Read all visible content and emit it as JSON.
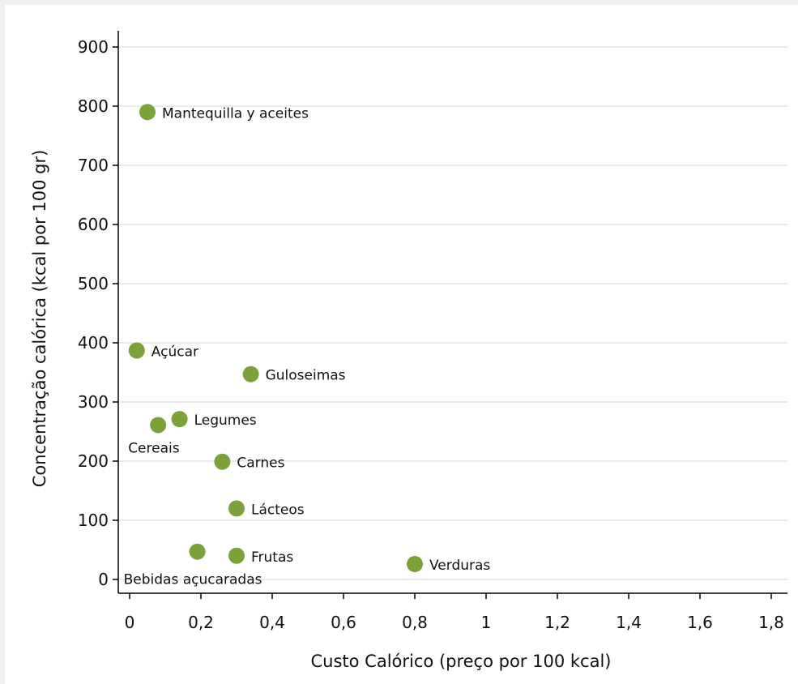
{
  "colors": {
    "background": "#eef0f1",
    "plot_background": "#ffffff",
    "grid": "#d9dde0",
    "point": "#7ba23a",
    "axis": "#000000"
  },
  "chart_data": {
    "type": "scatter",
    "title": "",
    "xlabel": "Custo Calórico (preço por 100 kcal)",
    "ylabel": "Concentração calórica (kcal por 100 gr)",
    "xlim": [
      0,
      1.8
    ],
    "ylim": [
      0,
      900
    ],
    "x_ticks": [
      0,
      0.2,
      0.4,
      0.6,
      0.8,
      1,
      1.2,
      1.4,
      1.6,
      1.8
    ],
    "x_tick_labels": [
      "0",
      "0,2",
      "0,4",
      "0,6",
      "0,8",
      "1",
      "1,2",
      "1,4",
      "1,6",
      "1,8"
    ],
    "y_ticks": [
      0,
      100,
      200,
      300,
      400,
      500,
      600,
      700,
      800,
      900
    ],
    "y_tick_labels": [
      "0",
      "100",
      "200",
      "300",
      "400",
      "500",
      "600",
      "700",
      "800",
      "900"
    ],
    "grid": "horizontal",
    "legend": "none",
    "points": [
      {
        "label": "Mantequilla y aceites",
        "x": 0.05,
        "y": 790
      },
      {
        "label": "Açúcar",
        "x": 0.02,
        "y": 387
      },
      {
        "label": "Guloseimas",
        "x": 0.34,
        "y": 347
      },
      {
        "label": "Legumes",
        "x": 0.14,
        "y": 271
      },
      {
        "label": "Cereais",
        "x": 0.08,
        "y": 261
      },
      {
        "label": "Carnes",
        "x": 0.26,
        "y": 199
      },
      {
        "label": "Lácteos",
        "x": 0.3,
        "y": 120
      },
      {
        "label": "Bebidas açucaradas",
        "x": 0.19,
        "y": 47
      },
      {
        "label": "Frutas",
        "x": 0.3,
        "y": 40
      },
      {
        "label": "Verduras",
        "x": 0.8,
        "y": 26
      }
    ]
  }
}
